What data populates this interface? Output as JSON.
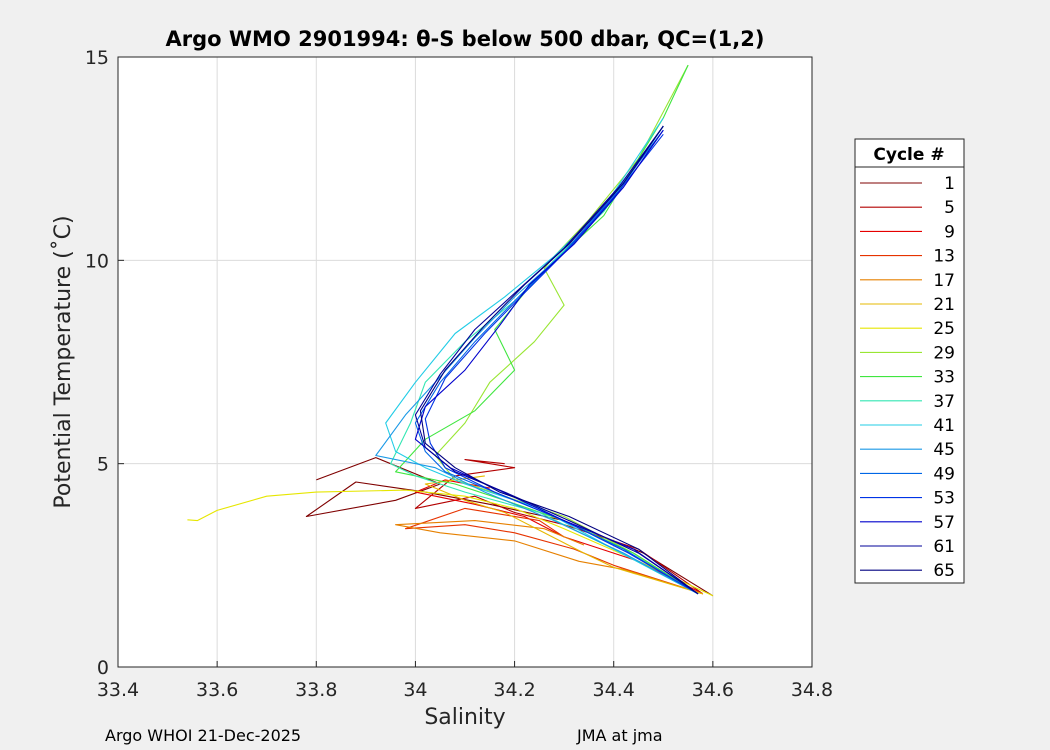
{
  "chart_data": {
    "type": "line",
    "title": "Argo WMO 2901994: θ-S below 500 dbar,  QC=(1,2)",
    "xlabel": "Salinity",
    "ylabel": "Potential Temperature (˚C)",
    "xlim": [
      33.4,
      34.8
    ],
    "ylim": [
      0,
      15
    ],
    "xticks": [
      "33.4",
      "33.6",
      "33.8",
      "34",
      "34.2",
      "34.4",
      "34.6",
      "34.8"
    ],
    "yticks": [
      "0",
      "5",
      "10",
      "15"
    ],
    "grid": true,
    "legend": {
      "title": "Cycle #",
      "placement": "outside-right",
      "entries": [
        {
          "label": "1",
          "color": "#7f0000"
        },
        {
          "label": "5",
          "color": "#b30000"
        },
        {
          "label": "9",
          "color": "#e60000"
        },
        {
          "label": "13",
          "color": "#e63300"
        },
        {
          "label": "17",
          "color": "#e68000"
        },
        {
          "label": "21",
          "color": "#e6b800"
        },
        {
          "label": "25",
          "color": "#e6e600"
        },
        {
          "label": "29",
          "color": "#99e633"
        },
        {
          "label": "33",
          "color": "#40e640"
        },
        {
          "label": "37",
          "color": "#33e6b3"
        },
        {
          "label": "41",
          "color": "#22cce6"
        },
        {
          "label": "45",
          "color": "#1a99e6"
        },
        {
          "label": "49",
          "color": "#0066e6"
        },
        {
          "label": "53",
          "color": "#0033e6"
        },
        {
          "label": "57",
          "color": "#0000cc"
        },
        {
          "label": "61",
          "color": "#00009a"
        },
        {
          "label": "65",
          "color": "#000080"
        }
      ]
    },
    "series": [
      {
        "name": "1",
        "color": "#7f0000",
        "points": [
          [
            34.6,
            1.75
          ],
          [
            34.46,
            2.8
          ],
          [
            34.3,
            3.6
          ],
          [
            34.15,
            4.0
          ],
          [
            34.02,
            4.3
          ],
          [
            33.88,
            4.55
          ],
          [
            33.78,
            3.7
          ],
          [
            33.96,
            4.1
          ],
          [
            34.05,
            4.5
          ],
          [
            33.92,
            5.15
          ],
          [
            33.8,
            4.6
          ]
        ]
      },
      {
        "name": "5",
        "color": "#b30000",
        "points": [
          [
            34.58,
            1.8
          ],
          [
            34.45,
            2.9
          ],
          [
            34.3,
            3.5
          ],
          [
            34.2,
            3.8
          ],
          [
            34.12,
            4.2
          ],
          [
            34.0,
            3.9
          ],
          [
            34.08,
            4.7
          ],
          [
            34.2,
            4.9
          ],
          [
            34.1,
            5.1
          ],
          [
            34.18,
            5.0
          ]
        ]
      },
      {
        "name": "9",
        "color": "#e60000",
        "points": [
          [
            34.58,
            1.8
          ],
          [
            34.45,
            2.6
          ],
          [
            34.3,
            3.2
          ],
          [
            34.22,
            3.7
          ],
          [
            34.12,
            4.0
          ],
          [
            34.0,
            4.3
          ],
          [
            34.06,
            4.6
          ],
          [
            34.15,
            4.4
          ]
        ]
      },
      {
        "name": "13",
        "color": "#e63300",
        "points": [
          [
            34.58,
            1.8
          ],
          [
            34.4,
            2.5
          ],
          [
            34.32,
            2.9
          ],
          [
            34.2,
            3.3
          ],
          [
            34.1,
            3.5
          ],
          [
            33.98,
            3.4
          ],
          [
            34.1,
            3.9
          ],
          [
            34.25,
            3.6
          ],
          [
            34.3,
            3.2
          ]
        ]
      },
      {
        "name": "17",
        "color": "#e68000",
        "points": [
          [
            34.58,
            1.8
          ],
          [
            34.42,
            2.4
          ],
          [
            34.33,
            2.6
          ],
          [
            34.2,
            3.1
          ],
          [
            34.05,
            3.3
          ],
          [
            33.96,
            3.5
          ],
          [
            34.12,
            3.6
          ],
          [
            34.26,
            3.4
          ],
          [
            34.34,
            3.0
          ]
        ]
      },
      {
        "name": "21",
        "color": "#e6b800",
        "points": [
          [
            34.58,
            1.8
          ],
          [
            34.4,
            2.45
          ],
          [
            34.34,
            2.8
          ],
          [
            34.26,
            3.3
          ],
          [
            34.18,
            3.8
          ],
          [
            34.1,
            4.1
          ],
          [
            34.02,
            4.5
          ],
          [
            34.14,
            4.7
          ]
        ]
      },
      {
        "name": "25",
        "color": "#e6e600",
        "points": [
          [
            34.6,
            1.75
          ],
          [
            34.45,
            2.6
          ],
          [
            34.3,
            3.4
          ],
          [
            34.2,
            3.9
          ],
          [
            34.1,
            4.2
          ],
          [
            33.98,
            4.35
          ],
          [
            33.8,
            4.3
          ],
          [
            33.7,
            4.2
          ],
          [
            33.6,
            3.85
          ],
          [
            33.56,
            3.6
          ],
          [
            33.54,
            3.62
          ]
        ]
      },
      {
        "name": "29",
        "color": "#99e633",
        "points": [
          [
            34.57,
            1.8
          ],
          [
            34.44,
            2.8
          ],
          [
            34.3,
            3.7
          ],
          [
            34.18,
            4.2
          ],
          [
            34.08,
            4.6
          ],
          [
            34.04,
            5.2
          ],
          [
            34.1,
            6.0
          ],
          [
            34.15,
            7.0
          ],
          [
            34.24,
            8.0
          ],
          [
            34.3,
            8.9
          ],
          [
            34.26,
            9.8
          ],
          [
            34.28,
            10.1
          ],
          [
            34.35,
            11.0
          ],
          [
            34.45,
            12.5
          ],
          [
            34.55,
            14.8
          ]
        ]
      },
      {
        "name": "33",
        "color": "#40e640",
        "points": [
          [
            34.57,
            1.8
          ],
          [
            34.44,
            2.8
          ],
          [
            34.3,
            3.6
          ],
          [
            34.18,
            4.1
          ],
          [
            34.08,
            4.5
          ],
          [
            33.96,
            4.8
          ],
          [
            34.02,
            5.6
          ],
          [
            34.12,
            6.3
          ],
          [
            34.2,
            7.3
          ],
          [
            34.16,
            8.3
          ],
          [
            34.22,
            9.2
          ],
          [
            34.3,
            10.2
          ],
          [
            34.38,
            11.1
          ],
          [
            34.5,
            13.5
          ],
          [
            34.55,
            14.8
          ]
        ]
      },
      {
        "name": "37",
        "color": "#33e6b3",
        "points": [
          [
            34.57,
            1.8
          ],
          [
            34.4,
            2.9
          ],
          [
            34.25,
            3.8
          ],
          [
            34.1,
            4.3
          ],
          [
            34.0,
            4.7
          ],
          [
            33.95,
            5.0
          ],
          [
            33.99,
            6.0
          ],
          [
            34.02,
            7.0
          ],
          [
            34.1,
            8.0
          ],
          [
            34.2,
            9.0
          ],
          [
            34.28,
            10.0
          ],
          [
            34.38,
            11.2
          ],
          [
            34.5,
            13.3
          ]
        ]
      },
      {
        "name": "41",
        "color": "#22cce6",
        "points": [
          [
            34.57,
            1.8
          ],
          [
            34.4,
            2.9
          ],
          [
            34.25,
            3.9
          ],
          [
            34.1,
            4.5
          ],
          [
            34.02,
            4.9
          ],
          [
            33.96,
            5.3
          ],
          [
            33.94,
            6.0
          ],
          [
            34.0,
            7.0
          ],
          [
            34.08,
            8.2
          ],
          [
            34.18,
            9.1
          ],
          [
            34.28,
            10.1
          ],
          [
            34.38,
            11.3
          ],
          [
            34.5,
            13.5
          ]
        ]
      },
      {
        "name": "45",
        "color": "#1a99e6",
        "points": [
          [
            34.57,
            1.8
          ],
          [
            34.42,
            2.8
          ],
          [
            34.28,
            3.6
          ],
          [
            34.14,
            4.3
          ],
          [
            34.04,
            4.9
          ],
          [
            33.92,
            5.2
          ],
          [
            33.98,
            6.2
          ],
          [
            34.04,
            7.0
          ],
          [
            34.12,
            8.1
          ],
          [
            34.2,
            9.1
          ],
          [
            34.3,
            10.2
          ],
          [
            34.4,
            11.5
          ],
          [
            34.5,
            13.3
          ]
        ]
      },
      {
        "name": "49",
        "color": "#0066e6",
        "points": [
          [
            34.57,
            1.8
          ],
          [
            34.42,
            2.9
          ],
          [
            34.28,
            3.7
          ],
          [
            34.14,
            4.4
          ],
          [
            34.06,
            4.8
          ],
          [
            34.02,
            5.3
          ],
          [
            34.0,
            6.0
          ],
          [
            34.05,
            7.0
          ],
          [
            34.12,
            8.0
          ],
          [
            34.2,
            9.0
          ],
          [
            34.3,
            10.2
          ],
          [
            34.4,
            11.6
          ],
          [
            34.5,
            13.2
          ]
        ]
      },
      {
        "name": "53",
        "color": "#0033e6",
        "points": [
          [
            34.57,
            1.8
          ],
          [
            34.43,
            2.8
          ],
          [
            34.3,
            3.6
          ],
          [
            34.16,
            4.3
          ],
          [
            34.06,
            4.9
          ],
          [
            34.03,
            5.5
          ],
          [
            34.02,
            6.1
          ],
          [
            34.06,
            7.1
          ],
          [
            34.14,
            8.2
          ],
          [
            34.22,
            9.2
          ],
          [
            34.31,
            10.3
          ],
          [
            34.41,
            11.7
          ],
          [
            34.5,
            13.1
          ]
        ]
      },
      {
        "name": "57",
        "color": "#0000cc",
        "points": [
          [
            34.57,
            1.8
          ],
          [
            34.44,
            2.9
          ],
          [
            34.3,
            3.6
          ],
          [
            34.16,
            4.4
          ],
          [
            34.07,
            4.9
          ],
          [
            34.0,
            5.6
          ],
          [
            34.02,
            6.4
          ],
          [
            34.1,
            7.3
          ],
          [
            34.17,
            8.4
          ],
          [
            34.23,
            9.4
          ],
          [
            34.32,
            10.4
          ],
          [
            34.42,
            11.8
          ],
          [
            34.5,
            13.2
          ]
        ]
      },
      {
        "name": "61",
        "color": "#00009a",
        "points": [
          [
            34.57,
            1.8
          ],
          [
            34.45,
            2.8
          ],
          [
            34.31,
            3.6
          ],
          [
            34.18,
            4.3
          ],
          [
            34.08,
            4.8
          ],
          [
            34.02,
            5.4
          ],
          [
            34.0,
            6.2
          ],
          [
            34.05,
            7.2
          ],
          [
            34.12,
            8.3
          ],
          [
            34.21,
            9.3
          ],
          [
            34.3,
            10.3
          ],
          [
            34.41,
            11.8
          ],
          [
            34.5,
            13.3
          ]
        ]
      },
      {
        "name": "65",
        "color": "#000080",
        "points": [
          [
            34.57,
            1.8
          ],
          [
            34.45,
            2.9
          ],
          [
            34.31,
            3.7
          ],
          [
            34.17,
            4.3
          ],
          [
            34.08,
            4.9
          ],
          [
            34.02,
            5.5
          ],
          [
            34.01,
            6.3
          ],
          [
            34.06,
            7.3
          ],
          [
            34.14,
            8.4
          ],
          [
            34.22,
            9.4
          ],
          [
            34.31,
            10.4
          ],
          [
            34.42,
            11.9
          ],
          [
            34.5,
            13.3
          ]
        ]
      }
    ]
  },
  "footer": {
    "left": "Argo WHOI 21-Dec-2025",
    "right": "JMA at jma"
  }
}
